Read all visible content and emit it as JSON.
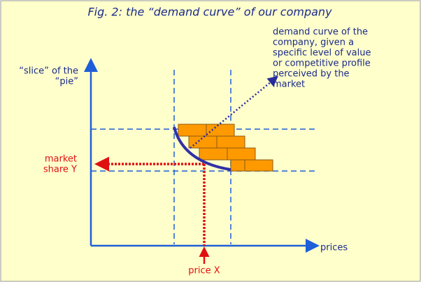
{
  "title": "Fig. 2: the “demand curve” of our company",
  "y_axis_label": [
    "“slice” of the",
    "“pie”"
  ],
  "annotation": [
    "demand curve of the",
    "company, given a",
    "specific level of value",
    "or competitive profile",
    "perceived by the",
    "market"
  ],
  "market_share_label": [
    "market",
    "share Y"
  ],
  "x_axis_label": "prices",
  "price_label": "price X"
}
